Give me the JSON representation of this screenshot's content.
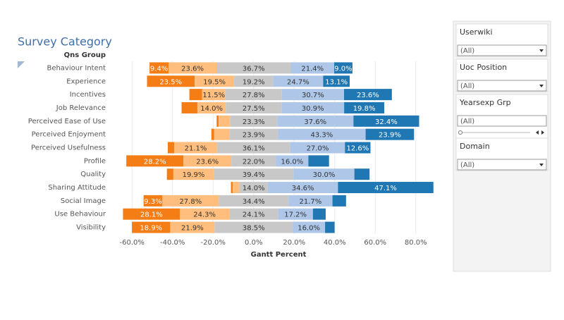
{
  "chart_data": {
    "type": "diverging-bar",
    "title": "Survey Category",
    "y_header": "Qns Group",
    "x_label": "Gantt Percent",
    "categories": [
      "Behaviour Intent",
      "Experience",
      "Incentives",
      "Job Relevance",
      "Perceived Ease of Use",
      "Perceived Enjoyment",
      "Perceived Usefulness",
      "Profile",
      "Quality",
      "Sharing Attitude",
      "Social Image",
      "Use Behaviour",
      "Visibility"
    ],
    "series": [
      {
        "color": "#f57d15",
        "values": [
          9.4,
          23.5,
          6.3,
          7.8,
          1.0,
          1.4,
          3.2,
          28.2,
          3.2,
          0.9,
          9.3,
          28.1,
          18.9
        ],
        "value_labels": [
          "9.4%",
          "23.5%",
          null,
          null,
          null,
          null,
          null,
          "28.2%",
          null,
          null,
          "9.3%",
          "28.1%",
          "18.9%"
        ]
      },
      {
        "color": "#ffbe7d",
        "values": [
          23.6,
          19.5,
          11.5,
          14.0,
          5.6,
          7.5,
          21.1,
          23.6,
          19.9,
          3.3,
          27.8,
          24.3,
          21.9
        ],
        "value_labels": [
          "23.6%",
          "19.5%",
          "11.5%",
          "14.0%",
          null,
          null,
          "21.1%",
          "23.6%",
          "19.9%",
          null,
          "27.8%",
          "24.3%",
          "21.9%"
        ]
      },
      {
        "color": "#c8c8c8",
        "values": [
          36.7,
          19.2,
          27.8,
          27.5,
          23.3,
          23.9,
          36.1,
          22.0,
          39.4,
          14.0,
          34.4,
          24.1,
          38.5
        ],
        "value_labels": [
          "36.7%",
          "19.2%",
          "27.8%",
          "27.5%",
          "23.3%",
          "23.9%",
          "36.1%",
          "22.0%",
          "39.4%",
          "14.0%",
          "34.4%",
          "24.1%",
          "38.5%"
        ]
      },
      {
        "color": "#aec7e8",
        "values": [
          21.4,
          24.7,
          30.7,
          30.9,
          37.6,
          43.3,
          27.0,
          16.0,
          30.0,
          34.6,
          21.7,
          17.2,
          16.0
        ],
        "value_labels": [
          "21.4%",
          "24.7%",
          "30.7%",
          "30.9%",
          "37.6%",
          "43.3%",
          "27.0%",
          "16.0%",
          "30.0%",
          "34.6%",
          "21.7%",
          "17.2%",
          "16.0%"
        ]
      },
      {
        "color": "#1f77b4",
        "values": [
          9.0,
          13.1,
          23.6,
          19.8,
          32.4,
          23.9,
          12.6,
          10.2,
          7.5,
          47.1,
          6.7,
          6.3,
          4.7
        ],
        "value_labels": [
          "9.0%",
          "13.1%",
          "23.6%",
          "19.8%",
          "32.4%",
          "23.9%",
          "12.6%",
          null,
          null,
          "47.1%",
          null,
          null,
          null
        ]
      }
    ],
    "xlim": [
      -66,
      86
    ],
    "xticks": [
      {
        "value": -60,
        "label": "-60.0%"
      },
      {
        "value": -40,
        "label": "-40.0%"
      },
      {
        "value": -20,
        "label": "-20.0%"
      },
      {
        "value": 0,
        "label": "0.0%"
      },
      {
        "value": 20,
        "label": "20.0%"
      },
      {
        "value": 40,
        "label": "40.0%"
      },
      {
        "value": 60,
        "label": "60.0%"
      },
      {
        "value": 80,
        "label": "80.0%"
      }
    ],
    "grid": true
  },
  "filters": [
    {
      "title": "Userwiki",
      "value": "(All)",
      "kind": "dropdown"
    },
    {
      "title": "Uoc Position",
      "value": "(All)",
      "kind": "dropdown"
    },
    {
      "title": "Yearsexp Grp",
      "value": "(All)",
      "kind": "slider"
    },
    {
      "title": "Domain",
      "value": "(All)",
      "kind": "dropdown"
    }
  ]
}
